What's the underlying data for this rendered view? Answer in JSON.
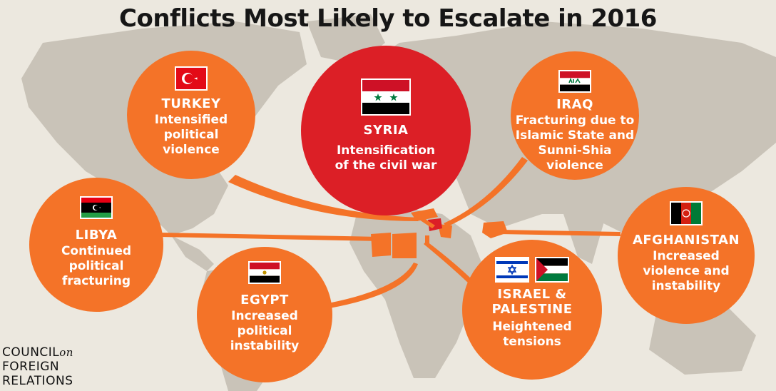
{
  "title": "Conflicts Most Likely to Escalate in 2016",
  "colors": {
    "orange": "#f47328",
    "red": "#dc1f26",
    "land": "#c9c3b8",
    "ocean": "#ece8df"
  },
  "conflicts": {
    "turkey": {
      "name": "TURKEY",
      "desc": [
        "Intensified",
        "political",
        "violence"
      ],
      "flag": "turkey-flag-icon"
    },
    "syria": {
      "name": "SYRIA",
      "desc": [
        "Intensification",
        "of the civil war"
      ],
      "flag": "syria-flag-icon"
    },
    "iraq": {
      "name": "IRAQ",
      "desc": [
        "Fracturing due to",
        "Islamic State and",
        "Sunni-Shia",
        "violence"
      ],
      "flag": "iraq-flag-icon"
    },
    "libya": {
      "name": "LIBYA",
      "desc": [
        "Continued",
        "political",
        "fracturing"
      ],
      "flag": "libya-flag-icon"
    },
    "afghanistan": {
      "name": "AFGHANISTAN",
      "desc": [
        "Increased",
        "violence and",
        "instability"
      ],
      "flag": "afghanistan-flag-icon"
    },
    "egypt": {
      "name": "EGYPT",
      "desc": [
        "Increased",
        "political",
        "instability"
      ],
      "flag": "egypt-flag-icon"
    },
    "israel_palestine": {
      "name": [
        "ISRAEL &",
        "PALESTINE"
      ],
      "desc": [
        "Heightened",
        "tensions"
      ],
      "flags": [
        "israel-flag-icon",
        "palestine-flag-icon"
      ]
    }
  },
  "logo": {
    "line1": "COUNCIL",
    "line1_suffix": "on",
    "line2": "FOREIGN",
    "line3": "RELATIONS"
  }
}
